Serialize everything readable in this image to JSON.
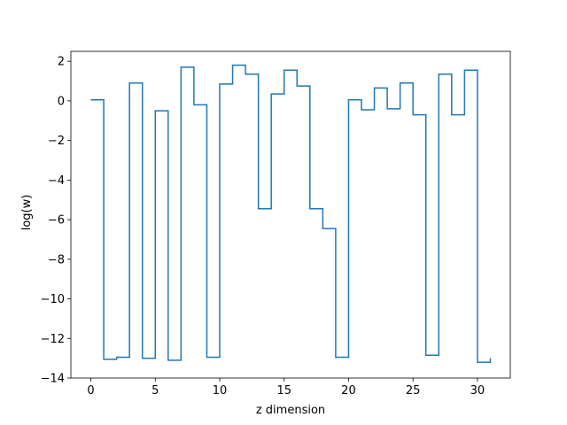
{
  "chart_data": {
    "type": "line",
    "drawstyle": "steps-post",
    "title": "",
    "xlabel": "z dimension",
    "ylabel": "log(w)",
    "xlim": [
      -1.55,
      32.55
    ],
    "ylim": [
      -14,
      2.5
    ],
    "x_ticks": [
      0,
      5,
      10,
      15,
      20,
      25,
      30
    ],
    "y_ticks": [
      2,
      0,
      -2,
      -4,
      -6,
      -8,
      -10,
      -12,
      -14
    ],
    "grid": false,
    "line_color": "#1f77b4",
    "series": [
      {
        "x": [
          0,
          1,
          2,
          3,
          4,
          5,
          6,
          7,
          8,
          9,
          10,
          11,
          12,
          13,
          14,
          15,
          16,
          17,
          18,
          19,
          20,
          21,
          22,
          23,
          24,
          25,
          26,
          27,
          28,
          29,
          30,
          31
        ],
        "values": [
          0.05,
          -13.05,
          -12.95,
          0.9,
          -13.0,
          -0.5,
          -13.1,
          1.7,
          -0.2,
          -12.95,
          0.85,
          1.8,
          1.35,
          -5.45,
          0.35,
          1.55,
          0.75,
          -5.45,
          -6.45,
          -12.95,
          0.05,
          -0.45,
          0.65,
          -0.4,
          0.9,
          -0.7,
          -12.85,
          1.35,
          -0.7,
          1.55,
          -13.2,
          -13.0
        ]
      }
    ]
  }
}
